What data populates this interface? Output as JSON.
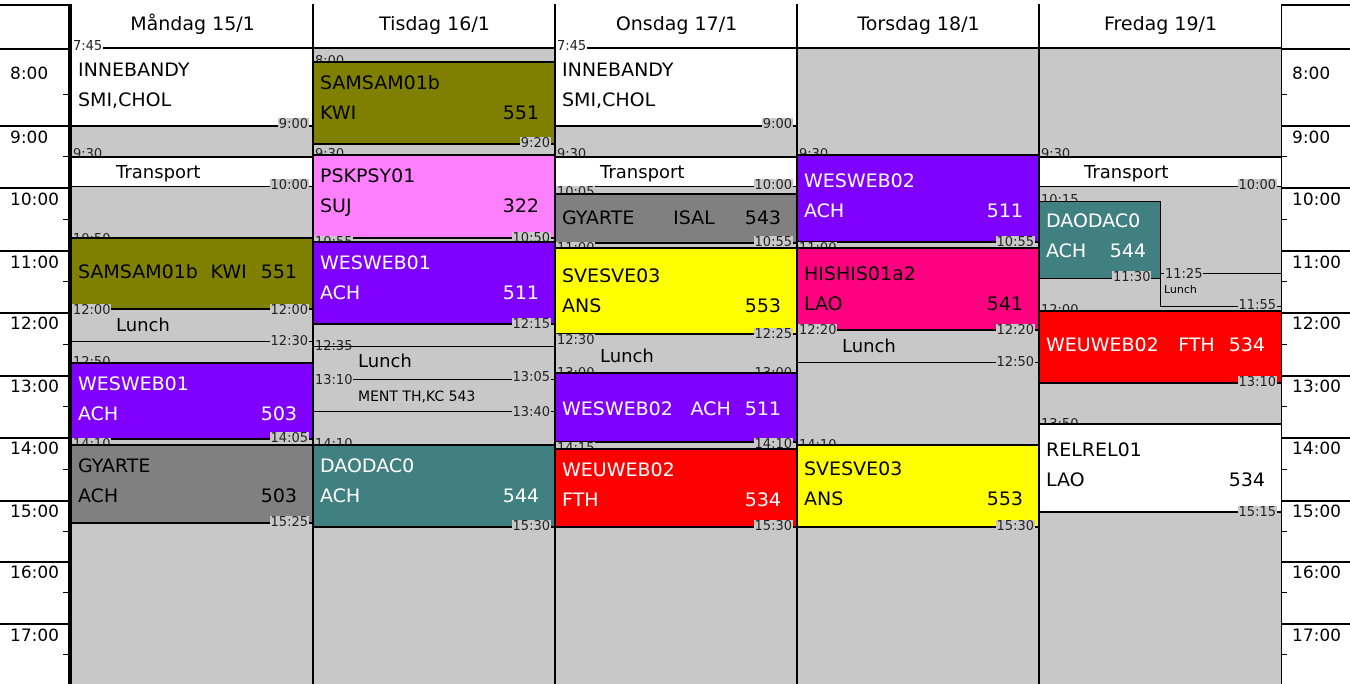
{
  "days": [
    {
      "label": "Måndag 15/1"
    },
    {
      "label": "Tisdag 16/1"
    },
    {
      "label": "Onsdag 17/1"
    },
    {
      "label": "Torsdag 18/1"
    },
    {
      "label": "Fredag 19/1"
    }
  ],
  "hours": [
    "8:00",
    "9:00",
    "10:00",
    "11:00",
    "12:00",
    "13:00",
    "14:00",
    "15:00",
    "16:00",
    "17:00"
  ],
  "colors": {
    "olive": "#808000",
    "pink": "#ff80ff",
    "purple": "#8000ff",
    "gray": "#808080",
    "teal": "#408080",
    "yellow": "#ffff00",
    "red": "#ff0000",
    "magenta": "#ff0080",
    "white": "#ffffff",
    "background": "#c8c8c8"
  },
  "mon": {
    "ev1": {
      "l1": "INNEBANDY",
      "l2": "SMI,CHOL",
      "start": "7:45",
      "end": "9:00"
    },
    "transport": {
      "label": "Transport",
      "start": "9:30",
      "end": "10:00"
    },
    "ev2": {
      "code": "SAMSAM01b",
      "teacher": "KWI",
      "room": "551",
      "start": "10:50",
      "end": "12:00"
    },
    "lunch": {
      "label": "Lunch",
      "start": "12:00",
      "end": "12:30"
    },
    "ev3": {
      "l1": "WESWEB01",
      "l2": "ACH",
      "room": "503",
      "start": "12:50",
      "end": "14:05"
    },
    "ev4": {
      "l1": "GYARTE",
      "l2": "ACH",
      "room": "503",
      "start": "14:10",
      "end": "15:25"
    }
  },
  "tue": {
    "ev1": {
      "l1": "SAMSAM01b",
      "l2": "KWI",
      "room": "551",
      "start": "8:00",
      "end": "9:20"
    },
    "ev2": {
      "l1": "PSKPSY01",
      "l2": "SUJ",
      "room": "322",
      "start": "9:30",
      "end": "10:50"
    },
    "ev3": {
      "l1": "WESWEB01",
      "l2": "ACH",
      "room": "511",
      "start": "10:55",
      "end": "12:15"
    },
    "lunch": {
      "label": "Lunch",
      "start": "12:35",
      "end": "13:05"
    },
    "ment": {
      "label": "MENT TH,KC 543",
      "start": "13:10",
      "end": "13:40"
    },
    "ev4": {
      "l1": "DAODAC0",
      "l2": "ACH",
      "room": "544",
      "start": "14:10",
      "end": "15:30"
    }
  },
  "wed": {
    "ev1": {
      "l1": "INNEBANDY",
      "l2": "SMI,CHOL",
      "start": "7:45",
      "end": "9:00"
    },
    "transport": {
      "label": "Transport",
      "start": "9:30",
      "end": "10:00"
    },
    "ev2": {
      "code": "GYARTE",
      "teacher": "ISAL",
      "room": "543",
      "start": "10:05",
      "end": "10:55"
    },
    "ev3": {
      "l1": "SVESVE03",
      "l2": "ANS",
      "room": "553",
      "start": "11:00",
      "end": "12:25"
    },
    "lunch": {
      "label": "Lunch",
      "start": "12:30",
      "end": "13:00"
    },
    "ev4": {
      "code": "WESWEB02",
      "teacher": "ACH",
      "room": "511",
      "start": "13:00",
      "end": "14:10"
    },
    "ev5": {
      "l1": "WEUWEB02",
      "l2": "FTH",
      "room": "534",
      "start": "14:15",
      "end": "15:30"
    }
  },
  "thu": {
    "ev1": {
      "l1": "WESWEB02",
      "l2": "ACH",
      "room": "511",
      "start": "9:30",
      "end": "10:55"
    },
    "ev2": {
      "l1": "HISHIS01a2",
      "l2": "LAO",
      "room": "541",
      "start": "11:00",
      "end": "12:20"
    },
    "lunch": {
      "label": "Lunch",
      "start": "12:20",
      "end": "12:50"
    },
    "ev3": {
      "l1": "SVESVE03",
      "l2": "ANS",
      "room": "553",
      "start": "14:10",
      "end": "15:30"
    }
  },
  "fri": {
    "transport": {
      "label": "Transport",
      "start": "9:30",
      "end": "10:00"
    },
    "ev1": {
      "l1": "DAODAC0",
      "l2": "ACH",
      "room": "544",
      "start": "10:15",
      "end": "11:30"
    },
    "lunch": {
      "label": "Lunch",
      "start": "11:25",
      "end": "11:55"
    },
    "ev2": {
      "code": "WEUWEB02",
      "teacher": "FTH",
      "room": "534",
      "start": "12:00",
      "end": "13:10"
    },
    "ev3": {
      "l1": "RELREL01",
      "l2": "LAO",
      "room": "534",
      "start": "13:50",
      "end": "15:15"
    }
  }
}
